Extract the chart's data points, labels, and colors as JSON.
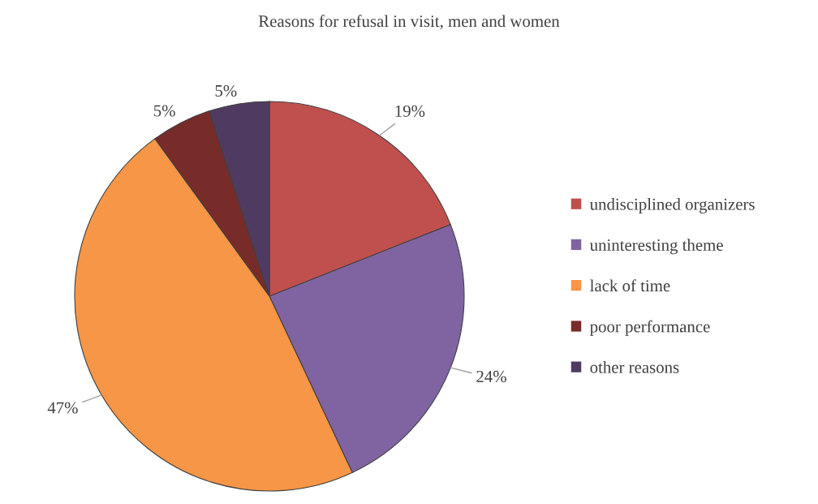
{
  "chart_data": {
    "type": "pie",
    "title": "Reasons for refusal in visit, men and women",
    "categories": [
      "undisciplined organizers",
      "uninteresting theme",
      "lack of time",
      "poor performance",
      "other reasons"
    ],
    "values": [
      19,
      24,
      47,
      5,
      5
    ],
    "colors": [
      "#c0504d",
      "#8064a2",
      "#f79646",
      "#772c2a",
      "#4f3b62"
    ],
    "value_labels": [
      "19%",
      "24%",
      "47%",
      "5%",
      "5%"
    ],
    "legend": "right"
  }
}
